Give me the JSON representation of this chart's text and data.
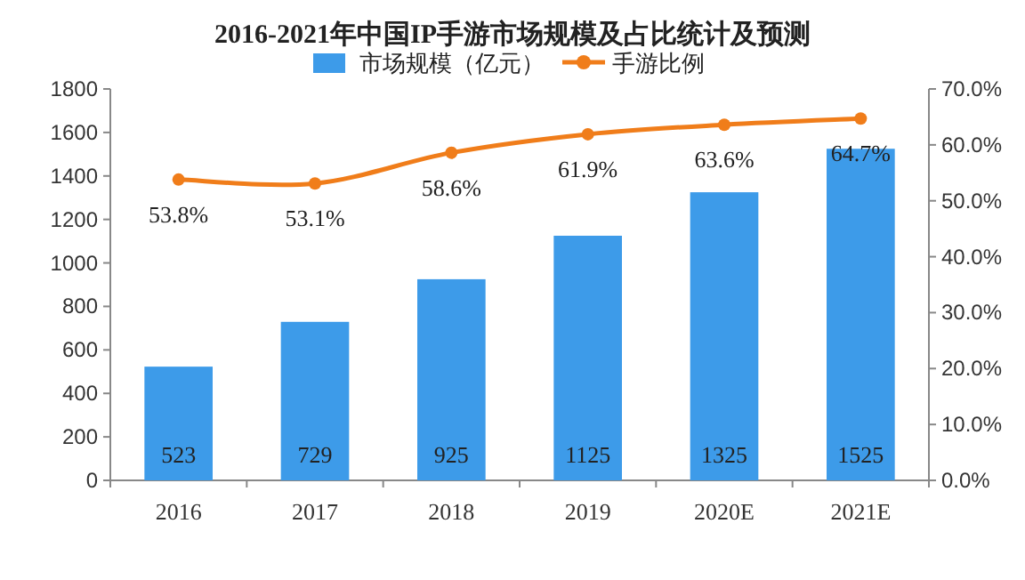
{
  "chart_data": {
    "type": "bar",
    "title": "2016-2021年中国IP手游市场规模及占比统计及预测",
    "categories": [
      "2016",
      "2017",
      "2018",
      "2019",
      "2020E",
      "2021E"
    ],
    "series": [
      {
        "name": "市场规模（亿元）",
        "color": "#3d9be9",
        "values": [
          523,
          729,
          925,
          1125,
          1325,
          1525
        ],
        "value_labels": [
          "523",
          "729",
          "925",
          "1125",
          "1325",
          "1525"
        ]
      },
      {
        "name": "手游比例",
        "type": "line",
        "axis": "y2",
        "color": "#f07d1a",
        "values": [
          53.8,
          53.1,
          58.6,
          61.9,
          63.6,
          64.7
        ],
        "value_labels": [
          "53.8%",
          "53.1%",
          "58.6%",
          "61.9%",
          "63.6%",
          "64.7%"
        ]
      }
    ],
    "ylim": [
      0,
      1800
    ],
    "yticks": [
      0,
      200,
      400,
      600,
      800,
      1000,
      1200,
      1400,
      1600,
      1800
    ],
    "y2lim": [
      0,
      70
    ],
    "y2ticks": [
      {
        "value": 0,
        "label": "0.0%"
      },
      {
        "value": 10,
        "label": "10.0%"
      },
      {
        "value": 20,
        "label": "20.0%"
      },
      {
        "value": 30,
        "label": "30.0%"
      },
      {
        "value": 40,
        "label": "40.0%"
      },
      {
        "value": 50,
        "label": "50.0%"
      },
      {
        "value": 60,
        "label": "60.0%"
      },
      {
        "value": 70,
        "label": "70.0%"
      }
    ],
    "legend": "top",
    "marker": "circle",
    "line_style": "solid",
    "grid": false
  }
}
